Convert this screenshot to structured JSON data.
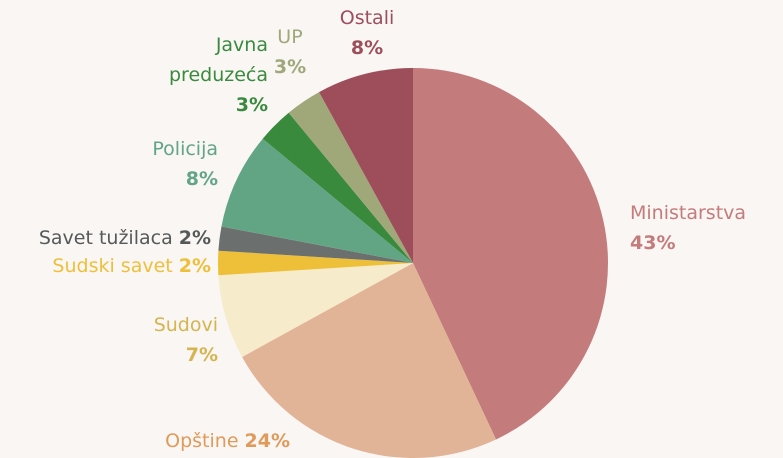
{
  "chart_data": {
    "type": "pie",
    "categories": [
      "Ministarstva",
      "Opštine",
      "Sudovi",
      "Sudski savet",
      "Savet tužilaca",
      "Policija",
      "Javna preduzeća",
      "UP",
      "Ostali"
    ],
    "values": [
      43,
      24,
      7,
      2,
      2,
      8,
      3,
      3,
      8
    ],
    "value_labels": [
      "43%",
      "24%",
      "7%",
      "2%",
      "2%",
      "8%",
      "3%",
      "3%",
      "8%"
    ],
    "colors": [
      "#c47b7b",
      "#e2b497",
      "#f6ebcb",
      "#eec03a",
      "#6b706e",
      "#62a585",
      "#3a8a3e",
      "#a0a87a",
      "#9d4e5a"
    ],
    "label_colors": [
      "#c47b7b",
      "#e09a5a",
      "#d4b54f",
      "#eec03a",
      "#555a58",
      "#62a585",
      "#3a8a3e",
      "#a0a87a",
      "#9d4e5a"
    ]
  }
}
